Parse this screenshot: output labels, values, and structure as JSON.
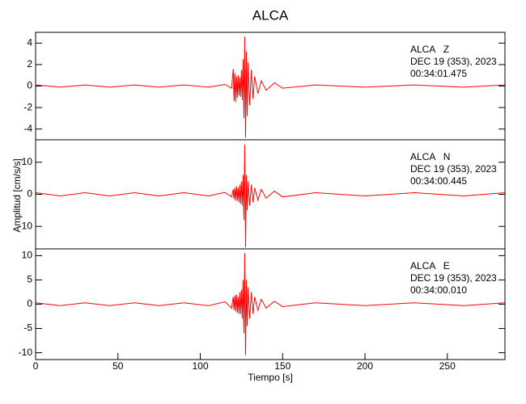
{
  "chart_data": [
    {
      "type": "line",
      "title": "ALCA",
      "annotation": [
        "ALCA   Z",
        "DEC 19 (353), 2023",
        "00:34:01.475"
      ],
      "xlim": [
        0,
        285
      ],
      "ylim": [
        -5,
        5
      ],
      "yticks": [
        -4,
        -2,
        0,
        2,
        4
      ],
      "x": [
        0,
        15,
        30,
        45,
        60,
        75,
        90,
        105,
        115,
        119,
        120,
        120.5,
        121,
        121.5,
        122,
        122.5,
        123,
        123.5,
        124,
        124.5,
        125,
        125.5,
        126,
        126.5,
        127,
        127.5,
        128,
        128.5,
        129,
        130,
        131,
        132,
        133,
        135,
        137,
        140,
        145,
        150,
        170,
        200,
        230,
        260,
        285
      ],
      "series": [
        {
          "color": "#ff0000",
          "values": [
            0.1,
            -0.1,
            0.1,
            -0.1,
            0.1,
            -0.1,
            0.1,
            -0.1,
            0.15,
            -0.2,
            1.6,
            -1.4,
            1.2,
            -1.5,
            0.9,
            -1.1,
            1.0,
            -0.9,
            0.8,
            -1.0,
            1.5,
            -1.3,
            2.5,
            -3.0,
            4.6,
            -4.8,
            3.2,
            -2.8,
            2.2,
            -1.8,
            1.5,
            -1.2,
            0.9,
            -0.7,
            0.5,
            -0.4,
            0.3,
            -0.2,
            0.1,
            -0.1,
            0.1,
            -0.1,
            0.1
          ]
        }
      ]
    },
    {
      "type": "line",
      "ylabel": "Amplitud [cm/s/s]",
      "annotation": [
        "ALCA   N",
        "DEC 19 (353), 2023",
        "00:34:00.445"
      ],
      "xlim": [
        0,
        285
      ],
      "ylim": [
        -17,
        17
      ],
      "yticks": [
        -10,
        0,
        10
      ],
      "x": [
        0,
        15,
        30,
        45,
        60,
        75,
        90,
        105,
        115,
        119,
        120,
        120.5,
        121,
        121.5,
        122,
        122.5,
        123,
        123.5,
        124,
        124.5,
        125,
        125.5,
        126,
        126.5,
        127,
        127.5,
        128,
        128.5,
        129,
        130,
        131,
        132,
        133,
        135,
        137,
        140,
        145,
        150,
        170,
        200,
        230,
        260,
        285
      ],
      "series": [
        {
          "color": "#ff0000",
          "values": [
            0.5,
            -0.5,
            0.5,
            -0.5,
            0.5,
            -0.5,
            0.5,
            -0.5,
            0.6,
            -0.8,
            1.5,
            -1.5,
            2,
            -2,
            2.5,
            -2,
            2,
            -2.5,
            3,
            -3,
            4,
            -3.5,
            6,
            -8,
            15.5,
            -16.5,
            6,
            -5,
            4,
            -3.5,
            3,
            -2.5,
            2,
            -1.8,
            1.5,
            -1.2,
            1,
            -0.8,
            0.5,
            -0.5,
            0.5,
            -0.5,
            0.5
          ]
        }
      ]
    },
    {
      "type": "line",
      "xlabel": "Tiempo [s]",
      "annotation": [
        "ALCA   E",
        "DEC 19 (353), 2023",
        "00:34:00.010"
      ],
      "xlim": [
        0,
        285
      ],
      "xticks": [
        0,
        50,
        100,
        150,
        200,
        250
      ],
      "ylim": [
        -11.4,
        11.4
      ],
      "yticks": [
        -10,
        -5,
        0,
        5,
        10
      ],
      "x": [
        0,
        15,
        30,
        45,
        60,
        75,
        90,
        105,
        115,
        119,
        120,
        120.5,
        121,
        121.5,
        122,
        122.5,
        123,
        123.5,
        124,
        124.5,
        125,
        125.5,
        126,
        126.5,
        127,
        127.5,
        128,
        128.5,
        129,
        130,
        131,
        132,
        133,
        135,
        137,
        140,
        145,
        150,
        170,
        200,
        230,
        260,
        285
      ],
      "series": [
        {
          "color": "#ff0000",
          "values": [
            0.3,
            -0.3,
            0.3,
            -0.3,
            0.3,
            -0.3,
            0.3,
            -0.3,
            0.5,
            -0.8,
            1.5,
            -1.2,
            1.8,
            -1.5,
            2,
            -1.8,
            1.5,
            -2,
            2.5,
            -2,
            3,
            -3,
            5,
            -6,
            10.5,
            -10.5,
            5,
            -4.5,
            3.5,
            -3,
            2.5,
            -2,
            1.5,
            -1.2,
            1,
            -0.8,
            0.6,
            -0.5,
            0.3,
            -0.3,
            0.3,
            -0.3,
            0.3
          ]
        }
      ]
    }
  ]
}
